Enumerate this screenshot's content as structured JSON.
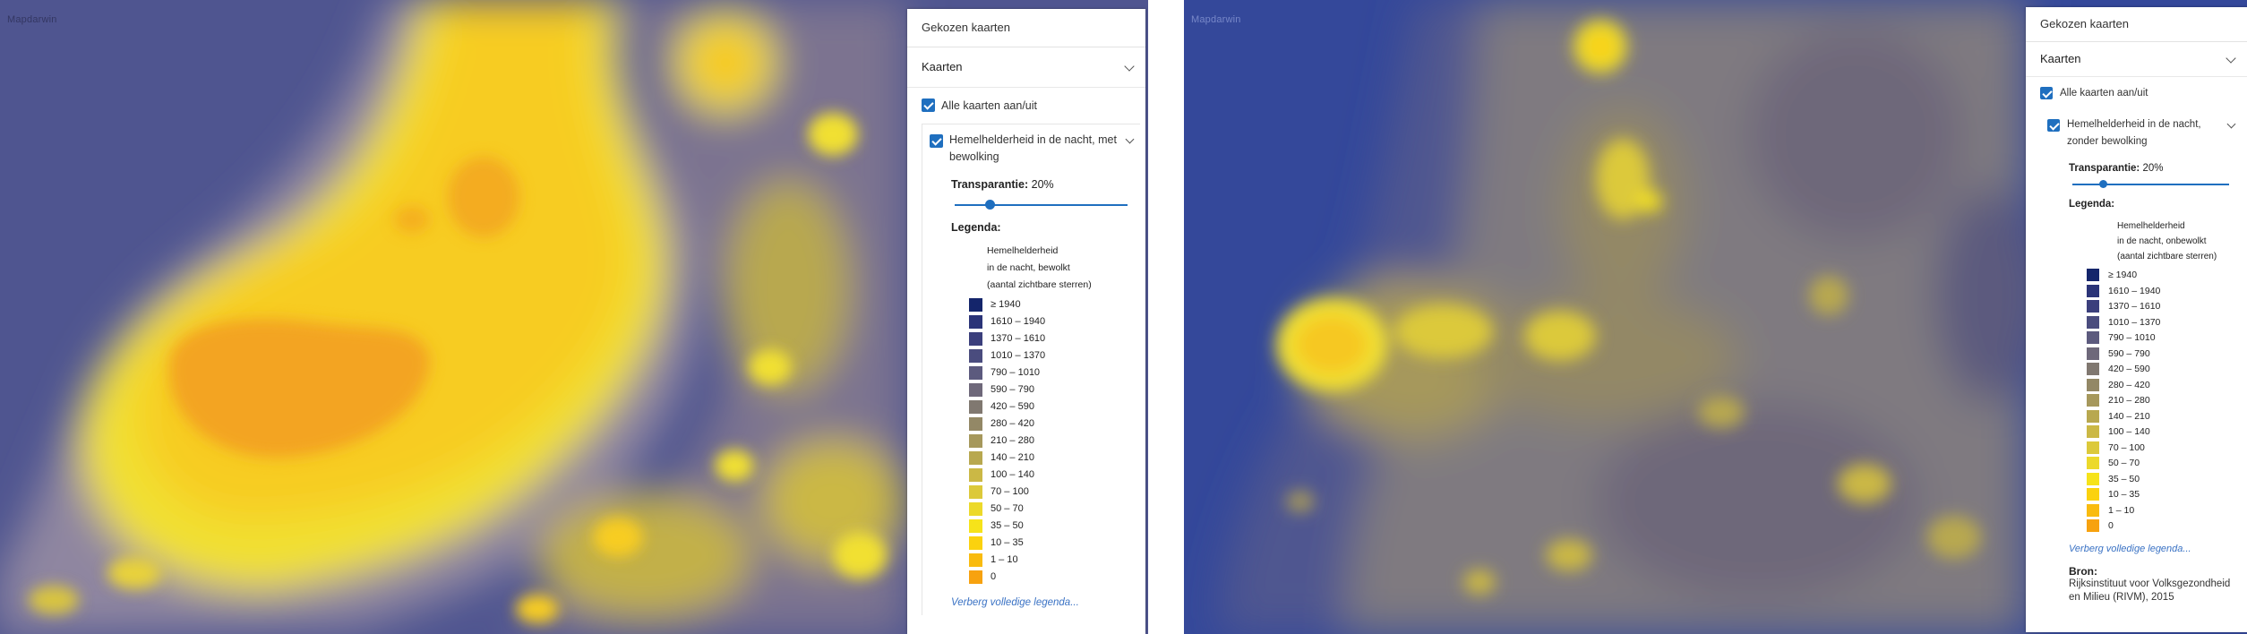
{
  "left": {
    "map_credit": "Mapdarwin",
    "panel": {
      "title": "Gekozen kaarten",
      "section": "Kaarten",
      "all_toggle": "Alle kaarten aan/uit",
      "layer_name": "Hemelhelderheid in de nacht, met bewolking",
      "transparency_label": "Transparantie:",
      "transparency_value": "20%",
      "transparency_fraction": 0.2,
      "legend_title": "Legenda:",
      "legend_caption": [
        "Hemelhelderheid",
        "in de nacht, bewolkt",
        "(aantal zichtbare sterren)"
      ],
      "hide_legend": "Verberg volledige legenda..."
    }
  },
  "right": {
    "map_credit": "Mapdarwin",
    "panel": {
      "title": "Gekozen kaarten",
      "section": "Kaarten",
      "all_toggle": "Alle kaarten aan/uit",
      "layer_name": "Hemelhelderheid in de nacht, zonder bewolking",
      "transparency_label": "Transparantie:",
      "transparency_value": "20%",
      "transparency_fraction": 0.2,
      "legend_title": "Legenda:",
      "legend_caption": [
        "Hemelhelderheid",
        "in de nacht, onbewolkt",
        "(aantal zichtbare sterren)"
      ],
      "hide_legend": "Verberg volledige legenda...",
      "source_label": "Bron:",
      "source_lines": [
        "Rijksinstituut voor Volksgezondheid",
        "en Milieu (RIVM), 2015"
      ]
    }
  },
  "legend_items": [
    {
      "label": "≥ 1940",
      "color": "#14256b"
    },
    {
      "label": "1610 – 1940",
      "color": "#2b3478"
    },
    {
      "label": "1370 – 1610",
      "color": "#3b3f7c"
    },
    {
      "label": "1010 – 1370",
      "color": "#4a4c7e"
    },
    {
      "label": "790 – 1010",
      "color": "#5c5a7e"
    },
    {
      "label": "590 – 790",
      "color": "#6e687a"
    },
    {
      "label": "420 – 590",
      "color": "#807870"
    },
    {
      "label": "280 – 420",
      "color": "#938866"
    },
    {
      "label": "210 – 280",
      "color": "#a6985c"
    },
    {
      "label": "140 – 210",
      "color": "#b8a84f"
    },
    {
      "label": "100 – 140",
      "color": "#cbb845"
    },
    {
      "label": "70 – 100",
      "color": "#dcc93a"
    },
    {
      "label": "50 – 70",
      "color": "#ecd92a"
    },
    {
      "label": "35 – 50",
      "color": "#f6e31a"
    },
    {
      "label": "10 – 35",
      "color": "#fbd20e"
    },
    {
      "label": "1 – 10",
      "color": "#f9bb0f"
    },
    {
      "label": "0",
      "color": "#f7a20f"
    }
  ]
}
